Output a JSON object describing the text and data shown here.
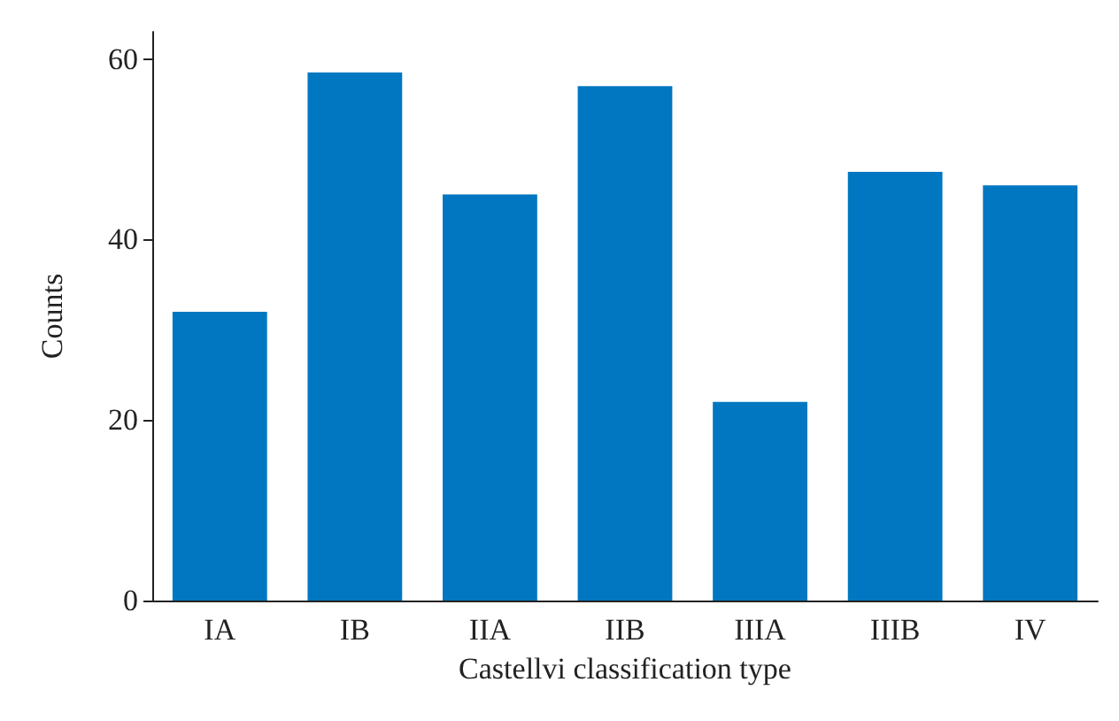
{
  "chart_data": {
    "type": "bar",
    "xlabel": "Castellvi classification type",
    "ylabel": "Counts",
    "categories": [
      "IA",
      "IB",
      "IIA",
      "IIB",
      "IIIA",
      "IIIB",
      "IV"
    ],
    "values": [
      32,
      58.5,
      45,
      57,
      22,
      47.5,
      46
    ],
    "color": "#0077c0",
    "ylim": [
      0,
      63
    ],
    "yticks": [
      0,
      20,
      40,
      60
    ],
    "grid": false
  }
}
